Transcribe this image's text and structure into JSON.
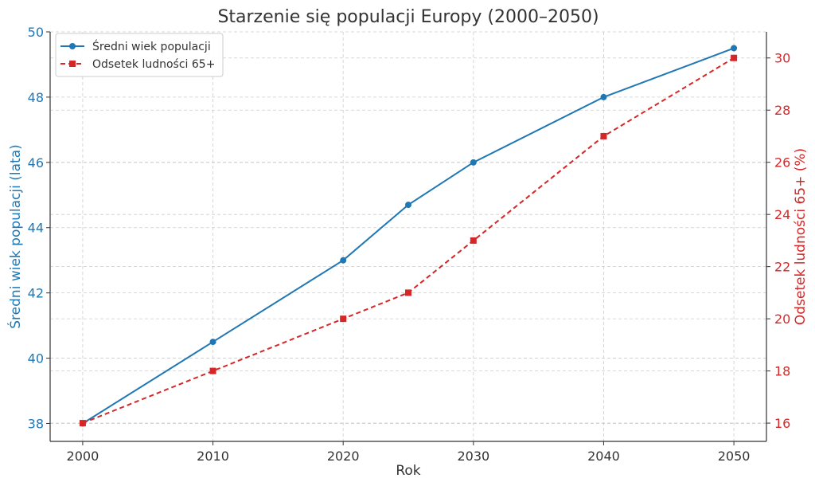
{
  "chart_data": {
    "type": "line",
    "title": "Starzenie się populacji Europy (2000–2050)",
    "xlabel": "Rok",
    "ylabel_left": "Średni wiek populacji (lata)",
    "ylabel_right": "Odsetek ludności 65+ (%)",
    "x": [
      2000,
      2010,
      2020,
      2025,
      2030,
      2040,
      2050
    ],
    "x_ticks": [
      2000,
      2010,
      2020,
      2030,
      2040,
      2050
    ],
    "xlim": [
      1997.5,
      2052.5
    ],
    "ylim_left": [
      37.45,
      50.0
    ],
    "y_ticks_left": [
      38,
      40,
      42,
      44,
      46,
      48,
      50
    ],
    "ylim_right": [
      15.3,
      31.0
    ],
    "y_ticks_right": [
      16,
      18,
      20,
      22,
      24,
      26,
      28,
      30
    ],
    "grid": true,
    "legend_position": "top-left",
    "series": [
      {
        "name": "Średni wiek populacji",
        "axis": "left",
        "values": [
          38,
          40.5,
          43,
          44.7,
          46,
          48,
          49.5
        ],
        "color": "#1f77b4",
        "line_style": "solid",
        "marker": "circle"
      },
      {
        "name": "Odsetek ludności 65+",
        "axis": "right",
        "values": [
          16,
          18,
          20,
          21,
          23,
          27,
          30
        ],
        "color": "#d62728",
        "line_style": "dashed",
        "marker": "square"
      }
    ]
  }
}
